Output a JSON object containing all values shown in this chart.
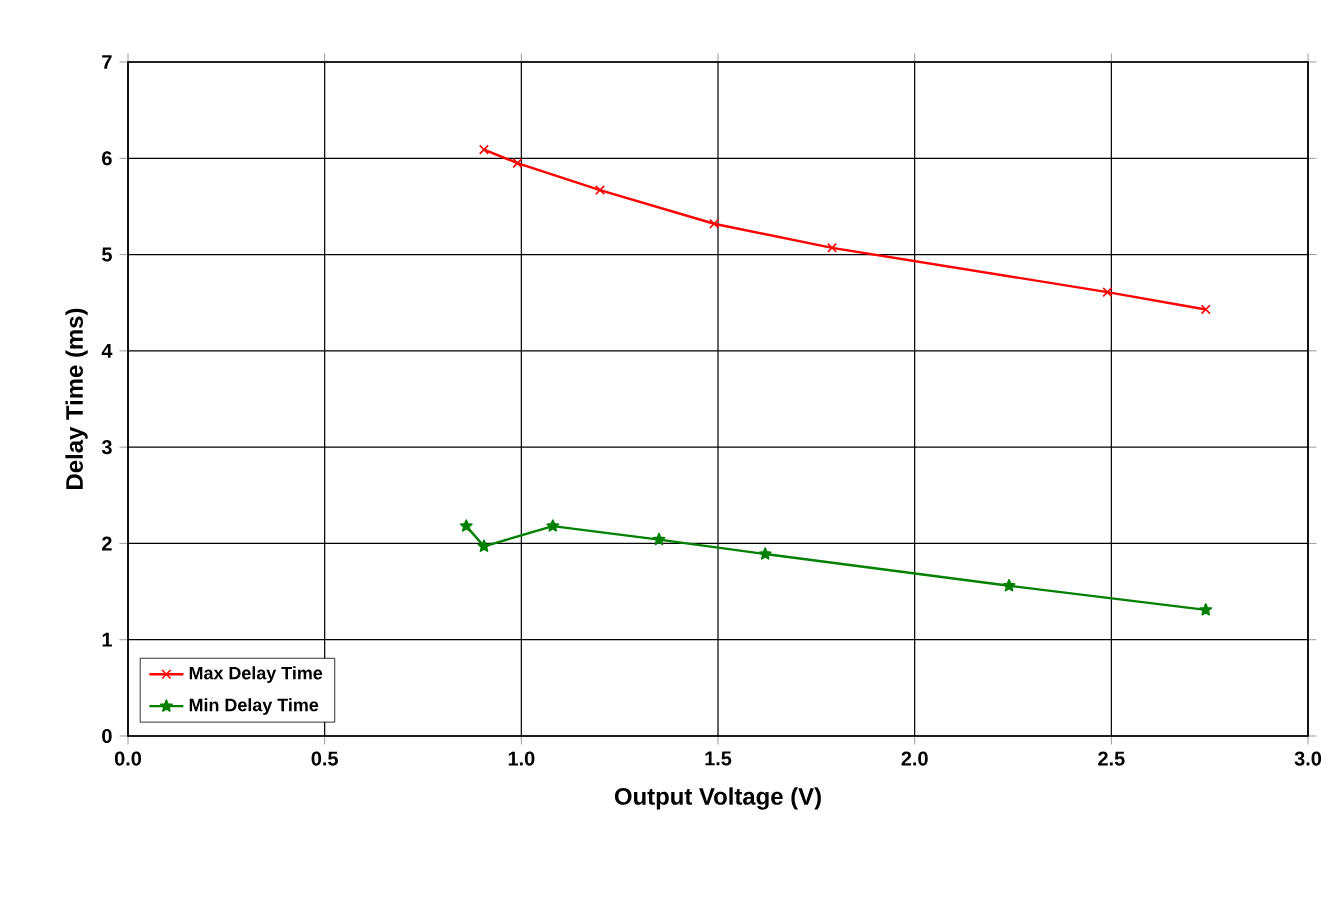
{
  "chart_data": {
    "type": "line",
    "xlabel": "Output Voltage (V)",
    "ylabel": "Delay Time (ms)",
    "xlim": [
      0,
      3
    ],
    "ylim": [
      0,
      7
    ],
    "xticks": [
      {
        "value": 0,
        "label": "0.0"
      },
      {
        "value": 0.5,
        "label": "0.5"
      },
      {
        "value": 1,
        "label": "1.0"
      },
      {
        "value": 1.5,
        "label": "1.5"
      },
      {
        "value": 2,
        "label": "2.0"
      },
      {
        "value": 2.5,
        "label": "2.5"
      },
      {
        "value": 3,
        "label": "3.0"
      }
    ],
    "yticks": [
      0,
      1,
      2,
      3,
      4,
      5,
      6,
      7
    ],
    "grid": true,
    "legend": "bottom left",
    "series": [
      {
        "name": "Max Delay Time",
        "color": "#ff0000",
        "marker": "cross",
        "x": [
          0.905,
          0.99,
          1.2,
          1.49,
          1.79,
          2.49,
          2.74
        ],
        "values": [
          6.09,
          5.95,
          5.67,
          5.32,
          5.07,
          4.61,
          4.43
        ]
      },
      {
        "name": "Min Delay Time",
        "color": "#008000",
        "marker": "star",
        "x": [
          0.86,
          0.905,
          1.08,
          1.35,
          1.62,
          2.24,
          2.74
        ],
        "values": [
          2.18,
          1.97,
          2.18,
          2.04,
          1.89,
          1.56,
          1.31
        ]
      }
    ]
  }
}
